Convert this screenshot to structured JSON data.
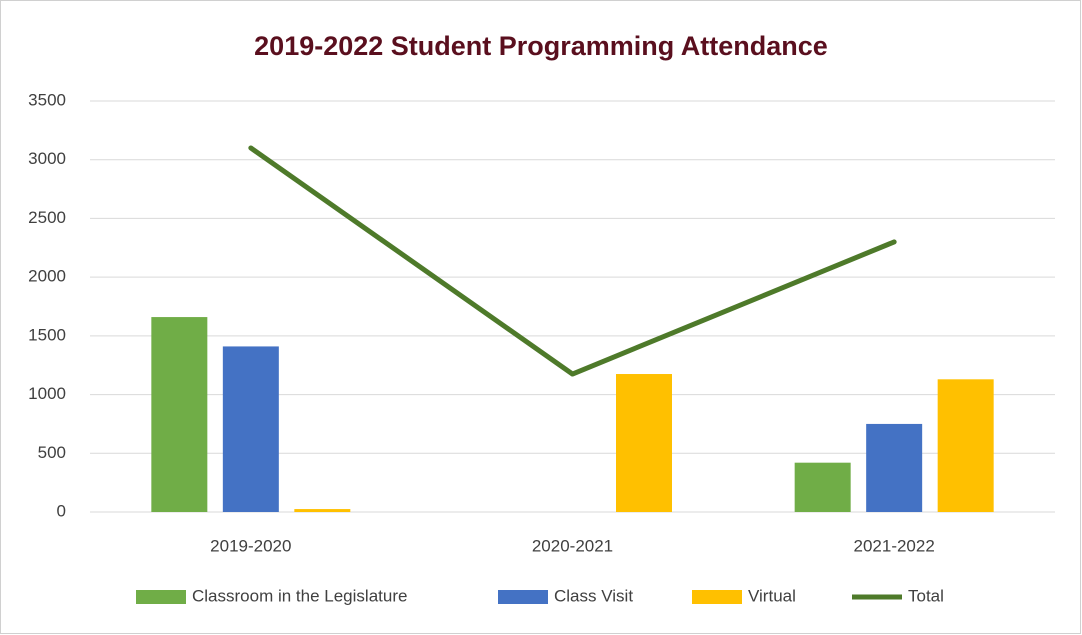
{
  "chart_data": {
    "type": "bar",
    "title": "2019-2022 Student Programming Attendance",
    "categories": [
      "2019-2020",
      "2020-2021",
      "2021-2022"
    ],
    "series": [
      {
        "name": "Classroom in the Legislature",
        "color": "#70ad47",
        "values": [
          1660,
          0,
          420
        ]
      },
      {
        "name": "Class Visit",
        "color": "#4472c4",
        "values": [
          1410,
          0,
          750
        ]
      },
      {
        "name": "Virtual",
        "color": "#ffc000",
        "values": [
          25,
          1175,
          1130
        ]
      },
      {
        "name": "Total",
        "color": "#4e7a2a",
        "type": "line",
        "values": [
          3100,
          1175,
          2300
        ]
      }
    ],
    "ylim": [
      0,
      3500
    ],
    "yticks": [
      0,
      500,
      1000,
      1500,
      2000,
      2500,
      3000,
      3500
    ],
    "grid": true,
    "legend": "bottom"
  }
}
